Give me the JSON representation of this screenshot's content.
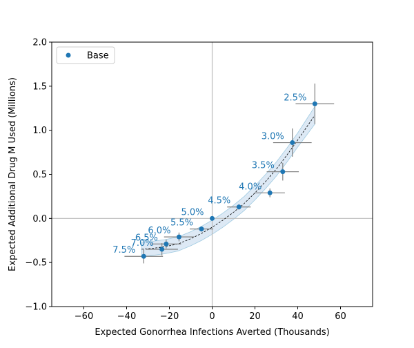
{
  "chart_data": {
    "type": "scatter",
    "title": "",
    "xlabel": "Expected Gonorrhea Infections Averted (Thousands)",
    "ylabel": "Expected Additional Drug M Used (Millions)",
    "xlim": [
      -75,
      75
    ],
    "ylim": [
      -1.0,
      2.0
    ],
    "xticks": [
      -60,
      -40,
      -20,
      0,
      20,
      40,
      60
    ],
    "xtick_labels": [
      "−60",
      "−40",
      "−20",
      "0",
      "20",
      "40",
      "60"
    ],
    "yticks": [
      -1.0,
      -0.5,
      0.0,
      0.5,
      1.0,
      1.5,
      2.0
    ],
    "ytick_labels": [
      "−1.0",
      "−0.5",
      "0.0",
      "0.5",
      "1.0",
      "1.5",
      "2.0"
    ],
    "grid": false,
    "reference_lines": {
      "x": 0,
      "y": 0
    },
    "legend": {
      "position": "top-left",
      "entries": [
        "Base"
      ]
    },
    "colors": {
      "points": "#1f77b4",
      "errorbars": "#808080",
      "band": "#c6dbef",
      "fit": "#000000"
    },
    "series": [
      {
        "name": "Base",
        "points": [
          {
            "label": "2.5%",
            "x": 48,
            "y": 1.3,
            "xerr": 9,
            "yerr": 0.23
          },
          {
            "label": "3.0%",
            "x": 37.5,
            "y": 0.86,
            "xerr": 9,
            "yerr": 0.16
          },
          {
            "label": "3.5%",
            "x": 33,
            "y": 0.53,
            "xerr": 7.5,
            "yerr": 0.1
          },
          {
            "label": "4.0%",
            "x": 27,
            "y": 0.29,
            "xerr": 7,
            "yerr": 0.05
          },
          {
            "label": "4.5%",
            "x": 12.5,
            "y": 0.13,
            "xerr": 5.5,
            "yerr": 0.03
          },
          {
            "label": "5.0%",
            "x": 0,
            "y": 0.0,
            "xerr": 0,
            "yerr": 0
          },
          {
            "label": "5.5%",
            "x": -5,
            "y": -0.12,
            "xerr": 5.5,
            "yerr": 0.03
          },
          {
            "label": "6.0%",
            "x": -15.5,
            "y": -0.21,
            "xerr": 7,
            "yerr": 0.05
          },
          {
            "label": "6.5%",
            "x": -21.5,
            "y": -0.29,
            "xerr": 7,
            "yerr": 0.05
          },
          {
            "label": "7.0%",
            "x": -23.5,
            "y": -0.35,
            "xerr": 7.5,
            "yerr": 0.07
          },
          {
            "label": "7.5%",
            "x": -32,
            "y": -0.43,
            "xerr": 9,
            "yerr": 0.08
          }
        ]
      }
    ],
    "fit": {
      "style": "dashed",
      "x": [
        -33,
        -28,
        -22,
        -16,
        -10,
        -5,
        0,
        5,
        10,
        15,
        20,
        25,
        30,
        35,
        40,
        44,
        48
      ],
      "y": [
        -0.35,
        -0.34,
        -0.32,
        -0.29,
        -0.23,
        -0.17,
        -0.1,
        -0.02,
        0.07,
        0.17,
        0.29,
        0.42,
        0.56,
        0.72,
        0.89,
        1.03,
        1.17
      ],
      "band": [
        0.08,
        0.08,
        0.08,
        0.08,
        0.08,
        0.08,
        0.08,
        0.08,
        0.08,
        0.08,
        0.08,
        0.08,
        0.08,
        0.08,
        0.08,
        0.09,
        0.1
      ]
    }
  }
}
